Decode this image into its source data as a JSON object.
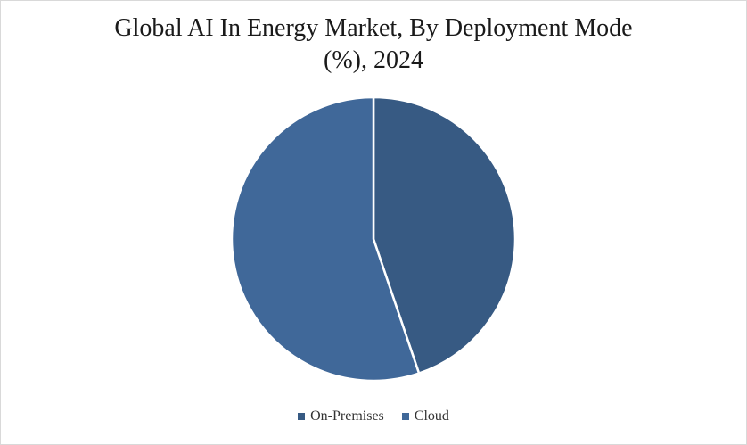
{
  "chart_data": {
    "type": "pie",
    "title_lines": [
      "Global AI In Energy Market, By Deployment Mode",
      "(%), 2024"
    ],
    "categories": [
      "On-Premises",
      "Cloud"
    ],
    "values": [
      44.8,
      55.2
    ],
    "colors": [
      "#375a83",
      "#406899"
    ],
    "start_angle_deg": 0,
    "direction": "clockwise",
    "legend_position": "bottom"
  }
}
